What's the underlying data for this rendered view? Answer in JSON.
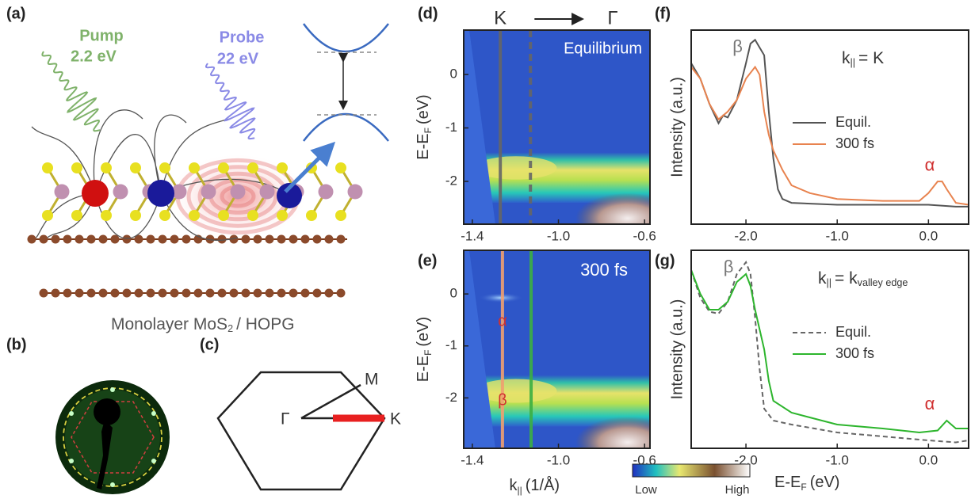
{
  "figure": {
    "panel_labels": [
      "(a)",
      "(b)",
      "(c)",
      "(d)",
      "(e)",
      "(f)",
      "(g)"
    ],
    "pump": {
      "name": "Pump",
      "energy": "2.2 eV"
    },
    "probe": {
      "name": "Probe",
      "energy": "22 eV"
    },
    "sample": {
      "text": "Monolayer MoS",
      "sub": "2",
      "rest": "/ HOPG"
    },
    "bz_labels": {
      "m": "M",
      "gamma": "Γ",
      "k": "K"
    },
    "colorbar": {
      "low": "Low",
      "high": "High"
    }
  },
  "chart_data": [
    {
      "type": "heatmap",
      "ylabel": {
        "text": "E-E",
        "sub": "F",
        "rest": "(eV)"
      },
      "direction": {
        "from": "K",
        "to": "Γ"
      },
      "annotations": [
        "Equilibrium"
      ],
      "xlim": [
        -1.44,
        -0.575
      ],
      "ylim": [
        -2.8,
        0.83
      ],
      "xticks": [
        -1.4,
        {
          "value": -1,
          "label": "-1.0"
        },
        -0.6
      ],
      "yticks": [
        -2,
        -1,
        0
      ],
      "cuts": [
        {
          "x": -1.27,
          "color": "#666666",
          "dash": false
        },
        {
          "x": -1.13,
          "color": "#666666",
          "dash": true
        }
      ]
    },
    {
      "type": "heatmap",
      "ylabel": {
        "text": "E-E",
        "sub": "F",
        "rest": "(eV)"
      },
      "xlabel": {
        "text": "k",
        "sub": "||",
        "rest": "(1/Å)"
      },
      "annotations": [
        "300 fs",
        "α",
        "β"
      ],
      "xlim": [
        -1.44,
        -0.575
      ],
      "ylim": [
        -2.97,
        0.84
      ],
      "xticks": [
        -1.4,
        {
          "value": -1,
          "label": "-1.0"
        },
        -0.6
      ],
      "yticks": [
        -2,
        -1,
        0
      ],
      "cuts": [
        {
          "x": -1.26,
          "color": "#f0a070",
          "dash": false
        },
        {
          "x": -1.127,
          "color": "#3cb043",
          "dash": false
        }
      ]
    },
    {
      "type": "line",
      "annotation": {
        "text": "k",
        "sub": "||",
        "rest": "= K"
      },
      "ylabel": "Intensity (a.u.)",
      "peak_labels": [
        "β",
        "α"
      ],
      "xlim": [
        -2.6,
        0.44
      ],
      "ylim": [
        0,
        1
      ],
      "xticks": [
        {
          "value": -2,
          "label": "-2.0"
        },
        {
          "value": -1,
          "label": "-1.0"
        },
        {
          "value": 0,
          "label": "0.0"
        }
      ],
      "series": [
        {
          "name": "Equil.",
          "color": "#555555",
          "dash": false,
          "x": [
            -2.6,
            -2.5,
            -2.4,
            -2.3,
            -2.25,
            -2.2,
            -2.1,
            -2.0,
            -1.95,
            -1.9,
            -1.85,
            -1.8,
            -1.75,
            -1.7,
            -1.65,
            -1.6,
            -1.5,
            -1.0,
            -0.5,
            0.0,
            0.3,
            0.44
          ],
          "values": [
            0.83,
            0.75,
            0.62,
            0.52,
            0.56,
            0.55,
            0.64,
            0.83,
            0.93,
            0.95,
            0.91,
            0.87,
            0.58,
            0.34,
            0.18,
            0.13,
            0.11,
            0.1,
            0.1,
            0.1,
            0.09,
            0.09
          ]
        },
        {
          "name": "300 fs",
          "color": "#e8834f",
          "dash": false,
          "x": [
            -2.6,
            -2.5,
            -2.4,
            -2.3,
            -2.2,
            -2.1,
            -2.0,
            -1.9,
            -1.85,
            -1.8,
            -1.75,
            -1.7,
            -1.6,
            -1.5,
            -1.3,
            -1.0,
            -0.5,
            -0.1,
            0.0,
            0.1,
            0.15,
            0.2,
            0.3,
            0.44
          ],
          "values": [
            0.81,
            0.75,
            0.62,
            0.54,
            0.58,
            0.64,
            0.75,
            0.81,
            0.77,
            0.58,
            0.46,
            0.38,
            0.28,
            0.2,
            0.16,
            0.13,
            0.12,
            0.12,
            0.16,
            0.22,
            0.22,
            0.18,
            0.11,
            0.1
          ]
        }
      ]
    },
    {
      "type": "line",
      "annotation": {
        "text": "k",
        "sub": "||",
        "rest": "= k",
        "sub2": "valley edge"
      },
      "ylabel": "Intensity (a.u.)",
      "xlabel": {
        "text": "E-E",
        "sub": "F",
        "rest": "(eV)"
      },
      "peak_labels": [
        "β",
        "α"
      ],
      "xlim": [
        -2.6,
        0.44
      ],
      "ylim": [
        0,
        1
      ],
      "xticks": [
        {
          "value": -2,
          "label": "-2.0"
        },
        {
          "value": -1,
          "label": "-1.0"
        },
        {
          "value": 0,
          "label": "0.0"
        }
      ],
      "series": [
        {
          "name": "Equil.",
          "color": "#666666",
          "dash": true,
          "x": [
            -2.6,
            -2.5,
            -2.4,
            -2.3,
            -2.2,
            -2.1,
            -2.0,
            -1.95,
            -1.9,
            -1.85,
            -1.8,
            -1.7,
            -1.5,
            -1.0,
            -0.5,
            0.0,
            0.3,
            0.44
          ],
          "values": [
            0.9,
            0.76,
            0.69,
            0.68,
            0.74,
            0.88,
            0.94,
            0.88,
            0.66,
            0.4,
            0.2,
            0.14,
            0.12,
            0.08,
            0.06,
            0.04,
            0.03,
            0.04
          ]
        },
        {
          "name": "300 fs",
          "color": "#2db52d",
          "dash": false,
          "x": [
            -2.6,
            -2.5,
            -2.4,
            -2.3,
            -2.2,
            -2.1,
            -2.0,
            -1.95,
            -1.9,
            -1.8,
            -1.75,
            -1.7,
            -1.5,
            -1.0,
            -0.5,
            -0.1,
            0.1,
            0.2,
            0.3,
            0.44
          ],
          "values": [
            0.9,
            0.78,
            0.7,
            0.7,
            0.74,
            0.84,
            0.88,
            0.82,
            0.7,
            0.5,
            0.34,
            0.24,
            0.18,
            0.12,
            0.1,
            0.08,
            0.09,
            0.14,
            0.1,
            0.1
          ]
        }
      ]
    }
  ]
}
